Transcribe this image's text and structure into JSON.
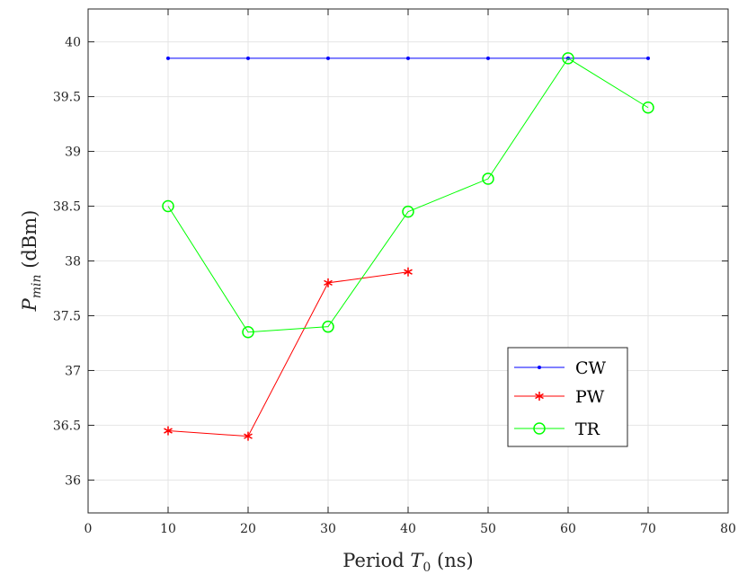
{
  "chart_data": {
    "type": "line",
    "xlabel": "Period T0 (ns)",
    "xlabel_parts": {
      "prefix": "Period ",
      "var": "T",
      "sub": "0",
      "suffix": " (ns)"
    },
    "ylabel": "Pmin (dBm)",
    "ylabel_parts": {
      "var": "P",
      "sub": "min",
      "suffix": " (dBm)"
    },
    "xlim": [
      0,
      80
    ],
    "ylim": [
      35.7,
      40.3
    ],
    "xticks": [
      0,
      10,
      20,
      30,
      40,
      50,
      60,
      70,
      80
    ],
    "yticks": [
      36,
      36.5,
      37,
      37.5,
      38,
      38.5,
      39,
      39.5,
      40
    ],
    "grid": true,
    "legend_position": "bottom-right",
    "series": [
      {
        "name": "CW",
        "color": "#0000ff",
        "marker": "dot",
        "x": [
          10,
          20,
          30,
          40,
          50,
          60,
          70
        ],
        "y": [
          39.85,
          39.85,
          39.85,
          39.85,
          39.85,
          39.85,
          39.85
        ]
      },
      {
        "name": "PW",
        "color": "#ff0000",
        "marker": "asterisk",
        "x": [
          10,
          20,
          30,
          40
        ],
        "y": [
          36.45,
          36.4,
          37.8,
          37.9
        ]
      },
      {
        "name": "TR",
        "color": "#00ff00",
        "marker": "circle",
        "x": [
          10,
          20,
          30,
          40,
          50,
          60,
          70
        ],
        "y": [
          38.5,
          37.35,
          37.4,
          38.45,
          38.75,
          39.85,
          39.4
        ]
      }
    ]
  }
}
